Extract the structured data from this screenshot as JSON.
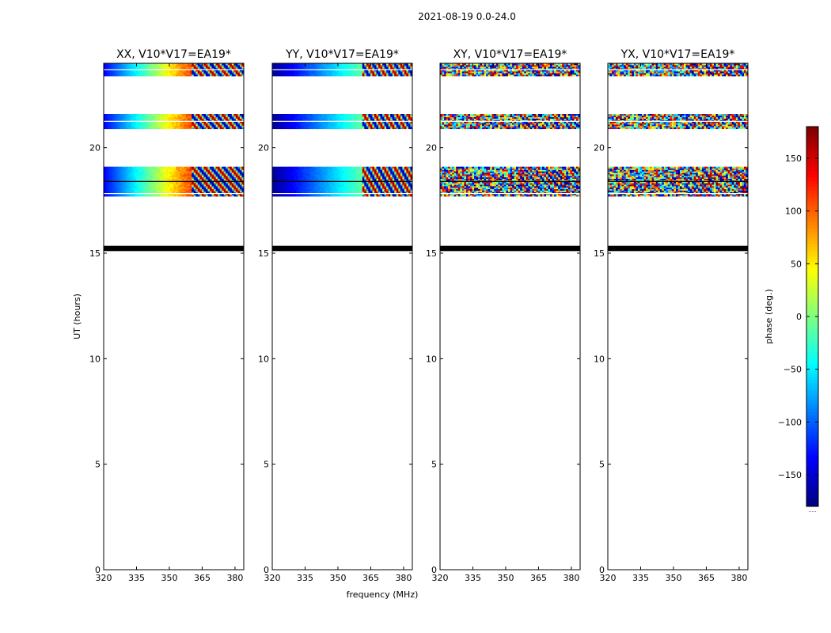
{
  "figure": {
    "suptitle": "2021-08-19 0.0-24.0"
  },
  "chart_data": {
    "type": "heatmap",
    "panels": [
      {
        "title": "XX, V10*V17=EA19*",
        "correlation": "XX"
      },
      {
        "title": "YY, V10*V17=EA19*",
        "correlation": "YY"
      },
      {
        "title": "XY, V10*V17=EA19*",
        "correlation": "XY"
      },
      {
        "title": "YX, V10*V17=EA19*",
        "correlation": "YX"
      }
    ],
    "xlabel": "frequency (MHz)",
    "ylabel": "UT (hours)",
    "xlim": [
      320,
      384
    ],
    "ylim": [
      0,
      24
    ],
    "xticks": [
      320,
      335,
      350,
      365,
      380
    ],
    "yticks": [
      0,
      5,
      10,
      15,
      20
    ],
    "data_bands_ut_hours": [
      {
        "start": 23.4,
        "end": 24.0
      },
      {
        "start": 20.9,
        "end": 21.6
      },
      {
        "start": 17.7,
        "end": 19.1
      }
    ],
    "flagged_black_band_ut_hours": {
      "start": 15.1,
      "end": 15.35
    },
    "colorbar": {
      "label": "phase (deg.)",
      "colormap": "jet",
      "vmin": -180,
      "vmax": 180,
      "ticks": [
        -150,
        -100,
        -50,
        0,
        50,
        100,
        150
      ],
      "tick_labels": [
        "−150",
        "−100",
        "−50",
        "0",
        "50",
        "100",
        "150"
      ],
      "bottom_note": "....."
    }
  }
}
